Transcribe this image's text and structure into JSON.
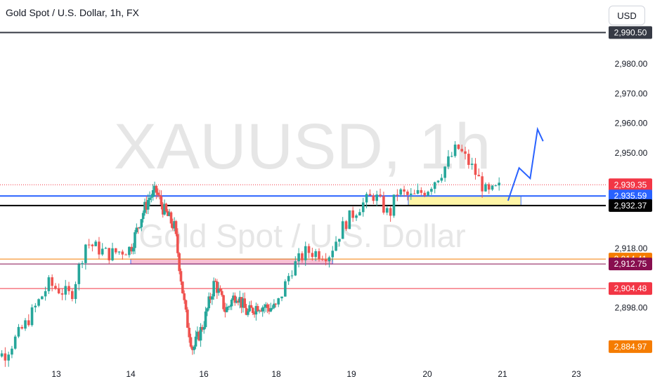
{
  "header": {
    "title": "Gold Spot / U.S. Dollar, 1h, FX",
    "currency": "USD"
  },
  "watermark": {
    "symbol": "XAUUSD, 1h",
    "description": "Gold Spot / U.S. Dollar"
  },
  "colors": {
    "up": "#26a69a",
    "down": "#ef5350",
    "blue_line": "#2962ff",
    "black_line": "#000000",
    "orange_line": "#f57c00",
    "maroon_line": "#880e4f",
    "red_line": "#f23645",
    "yellow_zone": "#fff59d",
    "pink_zone": "#f8bbd0",
    "projection": "#2962ff"
  },
  "chart_data": {
    "type": "candlestick",
    "y_range": [
      2880,
      2992
    ],
    "x_ticks": [
      "13",
      "14",
      "16",
      "18",
      "19",
      "20",
      "21",
      "23"
    ],
    "y_ticks": [
      "2,980.00",
      "2,970.00",
      "2,960.00",
      "2,950.00",
      "2,918.00",
      "2,898.00"
    ],
    "x_tick_values": [
      2920.0,
      2931.0,
      2899.0,
      2896.0,
      2936.0,
      2938.0,
      2939.35,
      2939.0
    ],
    "price_levels": [
      {
        "price": 2990.5,
        "label": "2,990.50",
        "bg": "#363a45",
        "fg": "#ffffff",
        "line": "#363a45",
        "style": "solid"
      },
      {
        "price": 2939.35,
        "label": "2,939.35",
        "bg": "#f23645",
        "fg": "#ffffff",
        "line": "#f23645",
        "style": "dotted"
      },
      {
        "price": 2935.59,
        "label": "2,935.59",
        "bg": "#2962ff",
        "fg": "#ffffff",
        "line": "#2962ff",
        "style": "solid"
      },
      {
        "price": 2932.37,
        "label": "2,932.37",
        "bg": "#000000",
        "fg": "#ffffff",
        "line": "#000000",
        "style": "solid"
      },
      {
        "price": 2914.41,
        "label": "2,914.41",
        "bg": "#f57c00",
        "fg": "#ffffff",
        "line": "#f57c00",
        "style": "solid"
      },
      {
        "price": 2912.75,
        "label": "2,912.75",
        "bg": "#880e4f",
        "fg": "#ffffff",
        "line": "#880e4f",
        "style": "solid"
      },
      {
        "price": 2904.48,
        "label": "2,904.48",
        "bg": "#f23645",
        "fg": "#ffffff",
        "line": "#f23645",
        "style": "solid"
      },
      {
        "price": 2884.97,
        "label": "2,884.97",
        "bg": "#f57c00",
        "fg": "#ffffff",
        "line": null,
        "style": "none"
      }
    ],
    "zones": [
      {
        "name": "yellow-zone",
        "x_from": "19.75",
        "x_to": "21.5",
        "price_from": 2935.59,
        "price_to": 2932.37,
        "fill": "#fff59d"
      },
      {
        "name": "pink-zone",
        "x_from": "14.0",
        "x_to": "18.75",
        "price_from": 2914.41,
        "price_to": 2912.75,
        "fill": "#f8bbd0"
      }
    ],
    "projection": [
      {
        "day": 21.15,
        "price": 2934.0
      },
      {
        "day": 21.45,
        "price": 2945.0
      },
      {
        "day": 21.75,
        "price": 2941.5
      },
      {
        "day": 21.95,
        "price": 2958.0
      },
      {
        "day": 22.1,
        "price": 2954.0
      }
    ],
    "candle_path": [
      [
        12.0,
        2886
      ],
      [
        12.3,
        2882
      ],
      [
        12.6,
        2893
      ],
      [
        12.9,
        2906
      ],
      [
        13.2,
        2902
      ],
      [
        13.4,
        2920
      ],
      [
        13.7,
        2916
      ],
      [
        14.0,
        2918
      ],
      [
        14.3,
        2929
      ],
      [
        14.5,
        2935
      ],
      [
        14.7,
        2937
      ],
      [
        14.9,
        2931
      ],
      [
        15.2,
        2925
      ],
      [
        15.5,
        2896
      ],
      [
        15.7,
        2884
      ],
      [
        16.0,
        2893
      ],
      [
        16.3,
        2907
      ],
      [
        16.6,
        2897
      ],
      [
        16.9,
        2903
      ],
      [
        17.2,
        2896
      ],
      [
        17.5,
        2899
      ],
      [
        17.8,
        2898
      ],
      [
        18.0,
        2898
      ],
      [
        18.2,
        2911
      ],
      [
        18.4,
        2917
      ],
      [
        18.7,
        2916
      ],
      [
        18.9,
        2926
      ],
      [
        19.1,
        2932
      ],
      [
        19.3,
        2936
      ],
      [
        19.5,
        2929
      ],
      [
        19.6,
        2937
      ],
      [
        19.8,
        2935
      ],
      [
        20.0,
        2938
      ],
      [
        20.2,
        2944
      ],
      [
        20.4,
        2952
      ],
      [
        20.6,
        2945
      ],
      [
        20.8,
        2936
      ],
      [
        21.0,
        2939
      ]
    ]
  }
}
